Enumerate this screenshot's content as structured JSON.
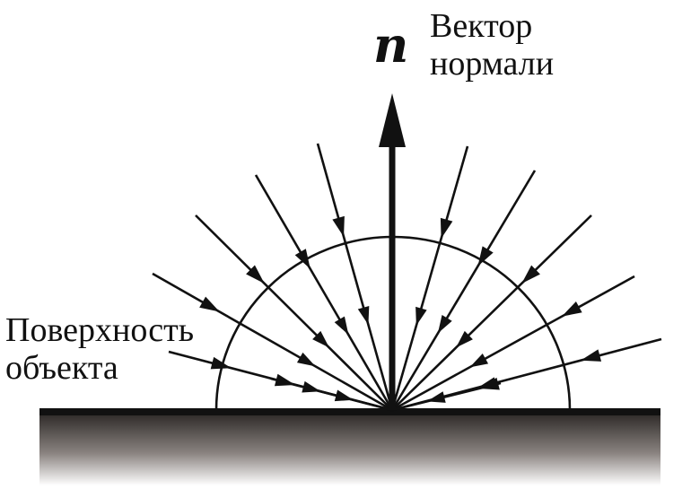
{
  "normal": {
    "symbol": "n",
    "label_line1": "Вектор",
    "label_line2": "нормали"
  },
  "surface": {
    "label_line1": "Поверхность",
    "label_line2": "объекта"
  },
  "colors": {
    "stroke": "#111111",
    "surface_top": "#2e2a28",
    "surface_bottom": "#ffffff"
  },
  "rays": {
    "count": 12,
    "description_icon": "incoming-light-ray-arrow"
  }
}
